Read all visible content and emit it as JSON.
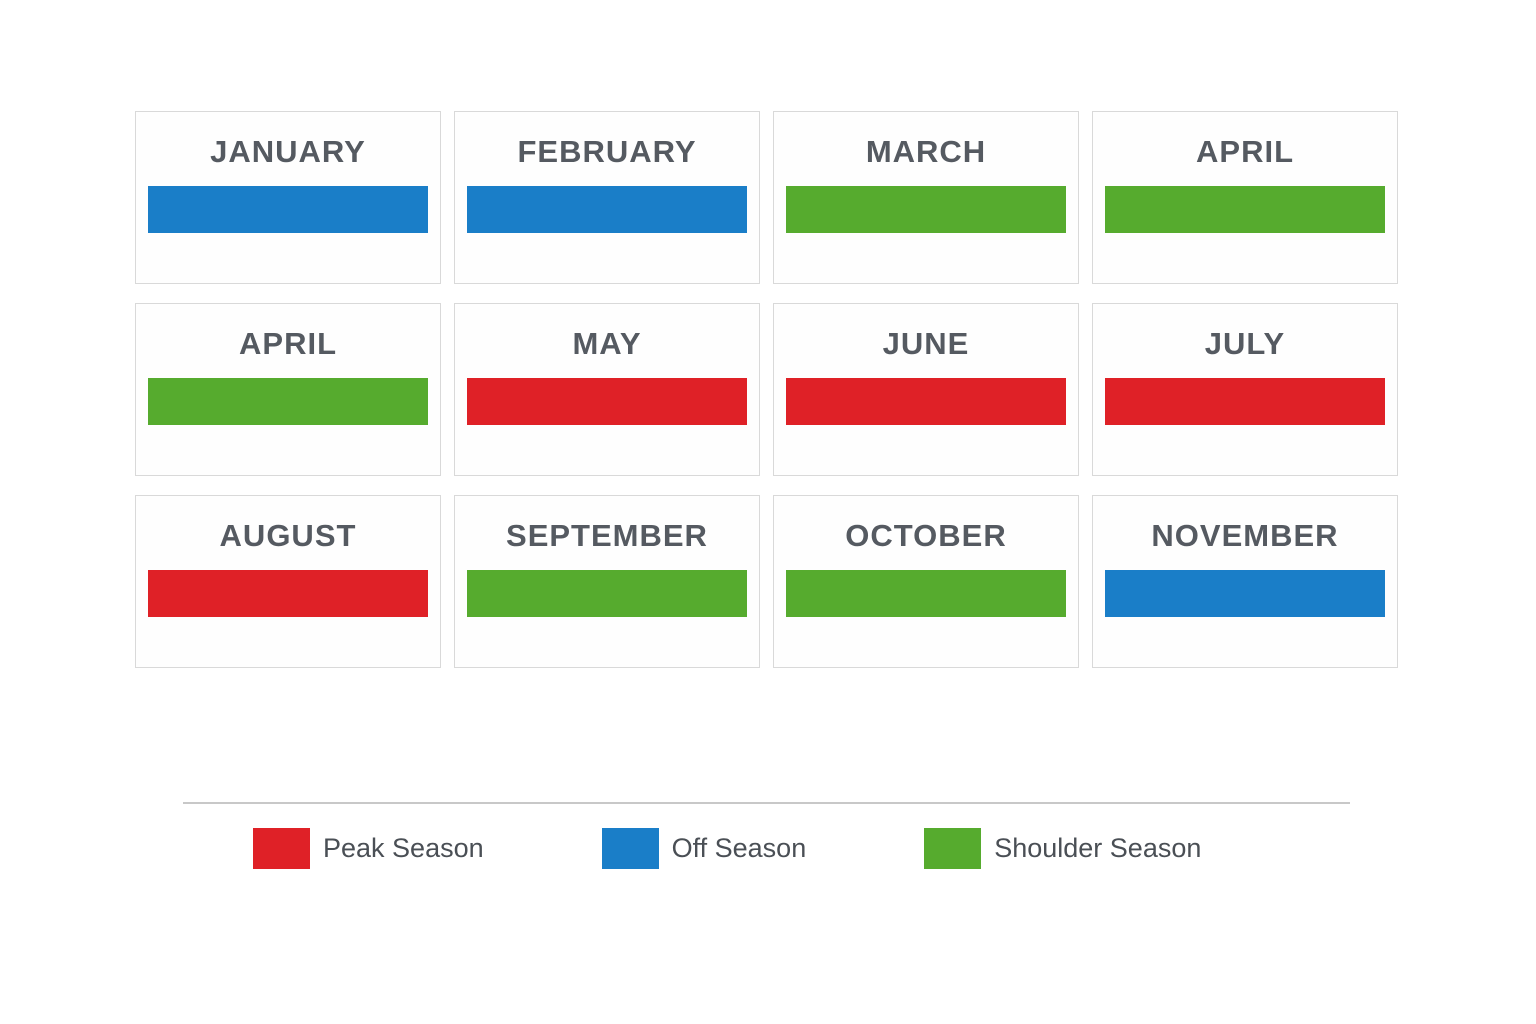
{
  "colors": {
    "peak": "#df2127",
    "off": "#1a7ec8",
    "shoulder": "#56ab2e",
    "card_border": "#d9d9d9",
    "title_text": "#555a61",
    "legend_text": "#4a4f55"
  },
  "months": [
    {
      "label": "JANUARY",
      "season": "off"
    },
    {
      "label": "FEBRUARY",
      "season": "off"
    },
    {
      "label": "MARCH",
      "season": "shoulder"
    },
    {
      "label": "APRIL",
      "season": "shoulder"
    },
    {
      "label": "APRIL",
      "season": "shoulder"
    },
    {
      "label": "MAY",
      "season": "peak"
    },
    {
      "label": "JUNE",
      "season": "peak"
    },
    {
      "label": "JULY",
      "season": "peak"
    },
    {
      "label": "AUGUST",
      "season": "peak"
    },
    {
      "label": "SEPTEMBER",
      "season": "shoulder"
    },
    {
      "label": "OCTOBER",
      "season": "shoulder"
    },
    {
      "label": "NOVEMBER",
      "season": "off"
    }
  ],
  "legend": [
    {
      "label": "Peak Season",
      "season": "peak"
    },
    {
      "label": "Off Season",
      "season": "off"
    },
    {
      "label": "Shoulder Season",
      "season": "shoulder"
    }
  ],
  "chart_data": {
    "type": "heatmap",
    "title": "",
    "categories": [
      "JANUARY",
      "FEBRUARY",
      "MARCH",
      "APRIL",
      "APRIL",
      "MAY",
      "JUNE",
      "JULY",
      "AUGUST",
      "SEPTEMBER",
      "OCTOBER",
      "NOVEMBER"
    ],
    "series": [
      {
        "name": "Season",
        "values": [
          "Off Season",
          "Off Season",
          "Shoulder Season",
          "Shoulder Season",
          "Shoulder Season",
          "Peak Season",
          "Peak Season",
          "Peak Season",
          "Peak Season",
          "Shoulder Season",
          "Shoulder Season",
          "Off Season"
        ]
      }
    ],
    "legend_entries": [
      "Peak Season",
      "Off Season",
      "Shoulder Season"
    ],
    "legend_position": "bottom",
    "layout": "3 rows x 4 columns of month cards; season encoded as bar color (red=peak, blue=off, green=shoulder); grid on cards, no axes"
  }
}
